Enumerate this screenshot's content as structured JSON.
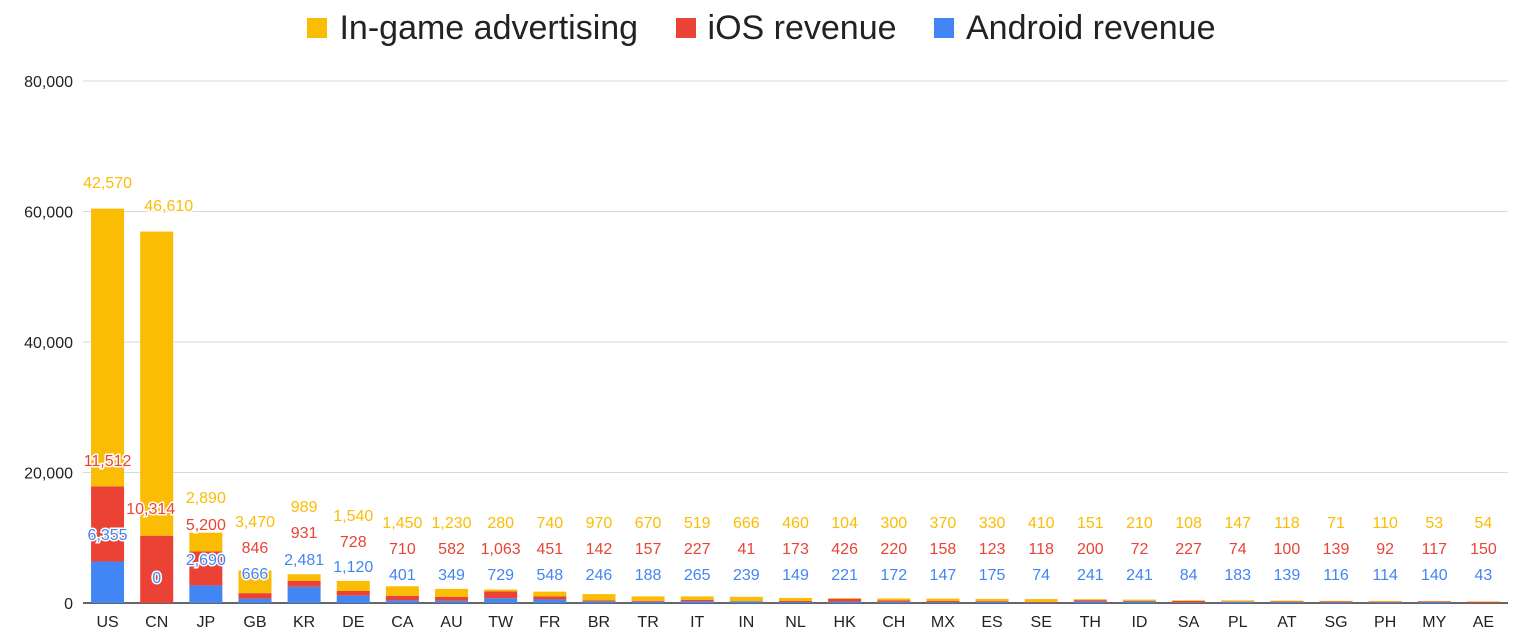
{
  "chart_data": {
    "type": "bar",
    "stacked": true,
    "categories": [
      "US",
      "CN",
      "JP",
      "GB",
      "KR",
      "DE",
      "CA",
      "AU",
      "TW",
      "FR",
      "BR",
      "TR",
      "IT",
      "IN",
      "NL",
      "HK",
      "CH",
      "MX",
      "ES",
      "SE",
      "TH",
      "ID",
      "SA",
      "PL",
      "AT",
      "SG",
      "PH",
      "MY",
      "AE"
    ],
    "series": [
      {
        "name": "Android revenue",
        "color": "#4285F4",
        "values": [
          6355,
          0,
          2690,
          666,
          2481,
          1120,
          401,
          349,
          729,
          548,
          246,
          188,
          265,
          239,
          149,
          221,
          172,
          147,
          175,
          74,
          241,
          241,
          84,
          183,
          139,
          116,
          114,
          140,
          43
        ]
      },
      {
        "name": "iOS revenue",
        "color": "#EA4335",
        "values": [
          11512,
          10314,
          5200,
          846,
          931,
          728,
          710,
          582,
          1063,
          451,
          142,
          157,
          227,
          41,
          173,
          426,
          220,
          158,
          123,
          118,
          200,
          72,
          227,
          74,
          100,
          139,
          92,
          117,
          150
        ]
      },
      {
        "name": "In-game advertising",
        "color": "#FBBC04",
        "values": [
          42570,
          46610,
          2890,
          3470,
          989,
          1540,
          1450,
          1230,
          280,
          740,
          970,
          670,
          519,
          666,
          460,
          104,
          300,
          370,
          330,
          410,
          151,
          210,
          108,
          147,
          118,
          71,
          110,
          53,
          54
        ]
      }
    ],
    "android_labels": [
      "6,355",
      "0",
      "2,690",
      "666",
      "2,481",
      "1,120",
      "401",
      "349",
      "729",
      "548",
      "246",
      "188",
      "265",
      "239",
      "149",
      "221",
      "172",
      "147",
      "175",
      "74",
      "241",
      "241",
      "84",
      "183",
      "139",
      "116",
      "114",
      "140",
      "43"
    ],
    "ios_labels": [
      "11,512",
      "10,314",
      "5,200",
      "846",
      "931",
      "728",
      "710",
      "582",
      "1,063",
      "451",
      "142",
      "157",
      "227",
      "41",
      "173",
      "426",
      "220",
      "158",
      "123",
      "118",
      "200",
      "72",
      "227",
      "74",
      "100",
      "139",
      "92",
      "117",
      "150"
    ],
    "ads_labels": [
      "42,570",
      "46,610",
      "2,890",
      "3,470",
      "989",
      "1,540",
      "1,450",
      "1,230",
      "280",
      "740",
      "970",
      "670",
      "519",
      "666",
      "460",
      "104",
      "300",
      "370",
      "330",
      "410",
      "151",
      "210",
      "108",
      "147",
      "118",
      "71",
      "110",
      "53",
      "54"
    ],
    "y_ticks": [
      0,
      20000,
      40000,
      60000,
      80000
    ],
    "y_tick_labels": [
      "0",
      "20,000",
      "40,000",
      "60,000",
      "80,000"
    ],
    "ylim": [
      0,
      80000
    ],
    "grid": true,
    "legend_position": "top-center",
    "legend": [
      "In-game advertising",
      "iOS revenue",
      "Android revenue"
    ],
    "title": "",
    "xlabel": "",
    "ylabel": ""
  }
}
